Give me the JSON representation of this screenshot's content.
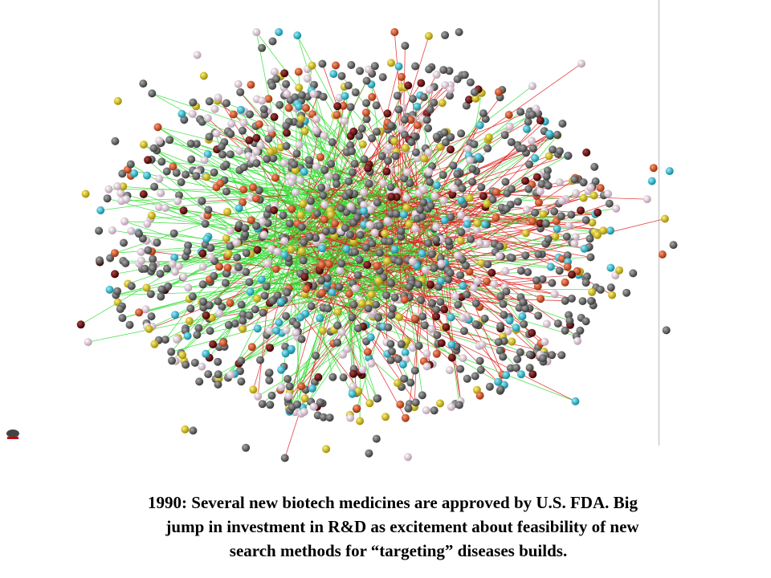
{
  "caption": {
    "lines": [
      "1990: Several new biotech medicines are approved by U.S. FDA.  Big",
      "jump in investment in R&D as excitement about feasibility of new",
      "search methods for “targeting” diseases builds."
    ]
  }
}
